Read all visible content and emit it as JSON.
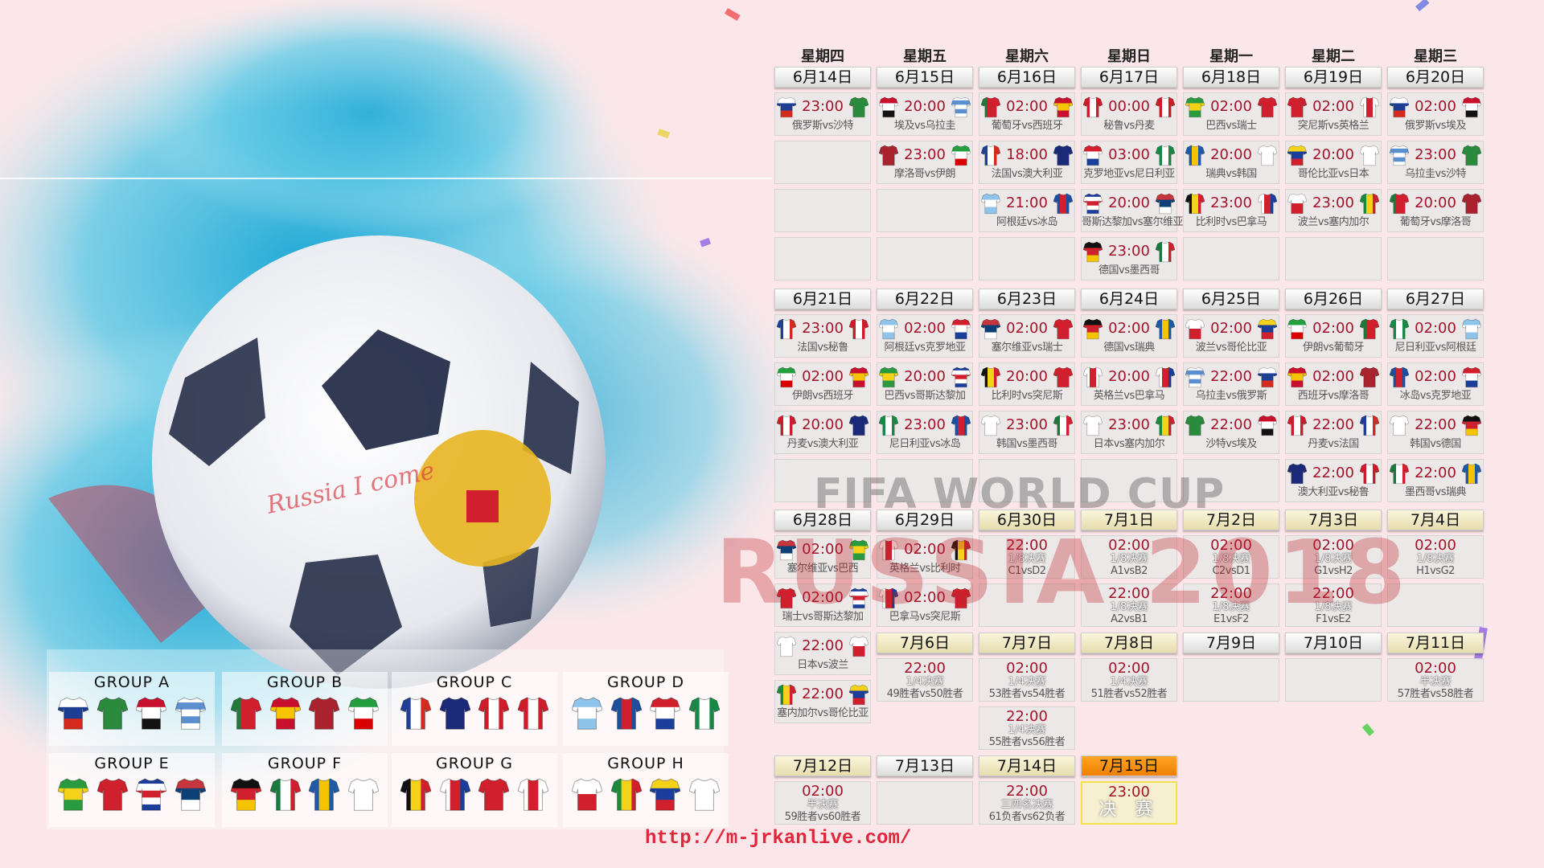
{
  "colors": {
    "background": "#fbe7e9",
    "time": "#a3142a",
    "final_header": "#f58a0a",
    "knockout_header": "#efe6bd",
    "url": "#e0263a"
  },
  "watermark": {
    "fifa": "FIFA WORLD CUP",
    "russia": "RUSSIA 2018",
    "ball": "Russia I come"
  },
  "url": "http://m-jrkanlive.com/",
  "weekdays": [
    "星期四",
    "星期五",
    "星期六",
    "星期日",
    "星期一",
    "星期二",
    "星期三"
  ],
  "teams": {
    "RUS": {
      "dir": "h",
      "colors": [
        "#ffffff",
        "#1c3f94",
        "#d52b1e"
      ]
    },
    "KSA": {
      "dir": "h",
      "colors": [
        "#2a8a3e"
      ]
    },
    "EGY": {
      "dir": "h",
      "colors": [
        "#c8102e",
        "#ffffff",
        "#111111"
      ]
    },
    "URU": {
      "dir": "h",
      "colors": [
        "#ffffff",
        "#5b8fd0",
        "#ffffff",
        "#5b8fd0",
        "#ffffff"
      ]
    },
    "POR": {
      "dir": "v",
      "colors": [
        "#1f7a3a",
        "#d0202e",
        "#d0202e"
      ]
    },
    "ESP": {
      "dir": "h",
      "colors": [
        "#c8102e",
        "#f6c400",
        "#c8102e"
      ]
    },
    "MAR": {
      "dir": "h",
      "colors": [
        "#a8232e"
      ]
    },
    "IRN": {
      "dir": "h",
      "colors": [
        "#239f40",
        "#ffffff",
        "#da0000"
      ]
    },
    "FRA": {
      "dir": "v",
      "colors": [
        "#1f3f99",
        "#ffffff",
        "#d52b1e"
      ]
    },
    "AUS": {
      "dir": "h",
      "colors": [
        "#1a2a78"
      ]
    },
    "PER": {
      "dir": "v",
      "colors": [
        "#d01c2a",
        "#ffffff",
        "#d01c2a"
      ]
    },
    "DEN": {
      "dir": "v",
      "colors": [
        "#d01c2a",
        "#ffffff",
        "#d01c2a"
      ]
    },
    "ARG": {
      "dir": "h",
      "colors": [
        "#8ec3ea",
        "#ffffff",
        "#8ec3ea"
      ]
    },
    "ISL": {
      "dir": "v",
      "colors": [
        "#1d4ea0",
        "#d0202e",
        "#1d4ea0"
      ]
    },
    "CRO": {
      "dir": "h",
      "colors": [
        "#d0202e",
        "#ffffff",
        "#1a3e99"
      ]
    },
    "NGA": {
      "dir": "v",
      "colors": [
        "#198a46",
        "#ffffff",
        "#198a46"
      ]
    },
    "BRA": {
      "dir": "h",
      "colors": [
        "#2a9a3e",
        "#f4d21a",
        "#2a9a3e"
      ]
    },
    "SUI": {
      "dir": "h",
      "colors": [
        "#d0202e"
      ]
    },
    "CRC": {
      "dir": "h",
      "colors": [
        "#1a3e99",
        "#ffffff",
        "#d0202e",
        "#ffffff",
        "#1a3e99"
      ]
    },
    "SRB": {
      "dir": "h",
      "colors": [
        "#c6363c",
        "#0c4077",
        "#ffffff"
      ]
    },
    "GER": {
      "dir": "h",
      "colors": [
        "#111111",
        "#d0202e",
        "#f4c400"
      ]
    },
    "MEX": {
      "dir": "v",
      "colors": [
        "#1a7a3e",
        "#ffffff",
        "#d0202e"
      ]
    },
    "SWE": {
      "dir": "v",
      "colors": [
        "#1e5aa8",
        "#f4c400",
        "#1e5aa8"
      ]
    },
    "KOR": {
      "dir": "h",
      "colors": [
        "#ffffff"
      ]
    },
    "BEL": {
      "dir": "v",
      "colors": [
        "#111111",
        "#f4d21a",
        "#d0202e"
      ]
    },
    "PAN": {
      "dir": "v",
      "colors": [
        "#ffffff",
        "#d0202e",
        "#1a3e99"
      ]
    },
    "TUN": {
      "dir": "h",
      "colors": [
        "#d0202e"
      ]
    },
    "ENG": {
      "dir": "v",
      "colors": [
        "#ffffff",
        "#d0202e",
        "#ffffff"
      ]
    },
    "POL": {
      "dir": "h",
      "colors": [
        "#ffffff",
        "#d0202e"
      ]
    },
    "SEN": {
      "dir": "v",
      "colors": [
        "#1a8a3e",
        "#f4d21a",
        "#d0202e"
      ]
    },
    "COL": {
      "dir": "h",
      "colors": [
        "#f4d21a",
        "#1a3e99",
        "#d0202e"
      ]
    },
    "JPN": {
      "dir": "h",
      "colors": [
        "#ffffff"
      ]
    }
  },
  "schedule": [
    {
      "days": [
        {
          "date": "6月14日",
          "header_style": "normal",
          "matches": [
            {
              "time": "23:00",
              "home": "RUS",
              "away": "KSA",
              "label": "俄罗斯vs沙特"
            }
          ]
        },
        {
          "date": "6月15日",
          "header_style": "normal",
          "matches": [
            {
              "time": "20:00",
              "home": "EGY",
              "away": "URU",
              "label": "埃及vs乌拉圭"
            },
            {
              "time": "23:00",
              "home": "MAR",
              "away": "IRN",
              "label": "摩洛哥vs伊朗"
            }
          ]
        },
        {
          "date": "6月16日",
          "header_style": "normal",
          "matches": [
            {
              "time": "02:00",
              "home": "POR",
              "away": "ESP",
              "label": "葡萄牙vs西班牙"
            },
            {
              "time": "18:00",
              "home": "FRA",
              "away": "AUS",
              "label": "法国vs澳大利亚"
            },
            {
              "time": "21:00",
              "home": "ARG",
              "away": "ISL",
              "label": "阿根廷vs冰岛"
            }
          ]
        },
        {
          "date": "6月17日",
          "header_style": "normal",
          "matches": [
            {
              "time": "00:00",
              "home": "PER",
              "away": "DEN",
              "label": "秘鲁vs丹麦"
            },
            {
              "time": "03:00",
              "home": "CRO",
              "away": "NGA",
              "label": "克罗地亚vs尼日利亚"
            },
            {
              "time": "20:00",
              "home": "CRC",
              "away": "SRB",
              "label": "哥斯达黎加vs塞尔维亚"
            },
            {
              "time": "23:00",
              "home": "GER",
              "away": "MEX",
              "label": "德国vs墨西哥"
            }
          ]
        },
        {
          "date": "6月18日",
          "header_style": "normal",
          "matches": [
            {
              "time": "02:00",
              "home": "BRA",
              "away": "SUI",
              "label": "巴西vs瑞士"
            },
            {
              "time": "20:00",
              "home": "SWE",
              "away": "KOR",
              "label": "瑞典vs韩国"
            },
            {
              "time": "23:00",
              "home": "BEL",
              "away": "PAN",
              "label": "比利时vs巴拿马"
            }
          ]
        },
        {
          "date": "6月19日",
          "header_style": "normal",
          "matches": [
            {
              "time": "02:00",
              "home": "TUN",
              "away": "ENG",
              "label": "突尼斯vs英格兰"
            },
            {
              "time": "20:00",
              "home": "COL",
              "away": "JPN",
              "label": "哥伦比亚vs日本"
            },
            {
              "time": "23:00",
              "home": "POL",
              "away": "SEN",
              "label": "波兰vs塞内加尔"
            }
          ]
        },
        {
          "date": "6月20日",
          "header_style": "normal",
          "matches": [
            {
              "time": "02:00",
              "home": "RUS",
              "away": "EGY",
              "label": "俄罗斯vs埃及"
            },
            {
              "time": "23:00",
              "home": "URU",
              "away": "KSA",
              "label": "乌拉圭vs沙特"
            },
            {
              "time": "20:00",
              "home": "POR",
              "away": "MAR",
              "label": "葡萄牙vs摩洛哥"
            }
          ]
        }
      ]
    },
    {
      "days": [
        {
          "date": "6月21日",
          "header_style": "normal",
          "matches": [
            {
              "time": "23:00",
              "home": "FRA",
              "away": "PER",
              "label": "法国vs秘鲁"
            },
            {
              "time": "02:00",
              "home": "IRN",
              "away": "ESP",
              "label": "伊朗vs西班牙"
            },
            {
              "time": "20:00",
              "home": "DEN",
              "away": "AUS",
              "label": "丹麦vs澳大利亚"
            }
          ]
        },
        {
          "date": "6月22日",
          "header_style": "normal",
          "matches": [
            {
              "time": "02:00",
              "home": "ARG",
              "away": "CRO",
              "label": "阿根廷vs克罗地亚"
            },
            {
              "time": "20:00",
              "home": "BRA",
              "away": "CRC",
              "label": "巴西vs哥斯达黎加"
            },
            {
              "time": "23:00",
              "home": "NGA",
              "away": "ISL",
              "label": "尼日利亚vs冰岛"
            }
          ]
        },
        {
          "date": "6月23日",
          "header_style": "normal",
          "matches": [
            {
              "time": "02:00",
              "home": "SRB",
              "away": "SUI",
              "label": "塞尔维亚vs瑞士"
            },
            {
              "time": "20:00",
              "home": "BEL",
              "away": "TUN",
              "label": "比利时vs突尼斯"
            },
            {
              "time": "23:00",
              "home": "KOR",
              "away": "MEX",
              "label": "韩国vs墨西哥"
            }
          ]
        },
        {
          "date": "6月24日",
          "header_style": "normal",
          "matches": [
            {
              "time": "02:00",
              "home": "GER",
              "away": "SWE",
              "label": "德国vs瑞典"
            },
            {
              "time": "20:00",
              "home": "ENG",
              "away": "PAN",
              "label": "英格兰vs巴拿马"
            },
            {
              "time": "23:00",
              "home": "JPN",
              "away": "SEN",
              "label": "日本vs塞内加尔"
            }
          ]
        },
        {
          "date": "6月25日",
          "header_style": "normal",
          "matches": [
            {
              "time": "02:00",
              "home": "POL",
              "away": "COL",
              "label": "波兰vs哥伦比亚"
            },
            {
              "time": "22:00",
              "home": "URU",
              "away": "RUS",
              "label": "乌拉圭vs俄罗斯"
            },
            {
              "time": "22:00",
              "home": "KSA",
              "away": "EGY",
              "label": "沙特vs埃及"
            }
          ]
        },
        {
          "date": "6月26日",
          "header_style": "normal",
          "matches": [
            {
              "time": "02:00",
              "home": "IRN",
              "away": "POR",
              "label": "伊朗vs葡萄牙"
            },
            {
              "time": "02:00",
              "home": "ESP",
              "away": "MAR",
              "label": "西班牙vs摩洛哥"
            },
            {
              "time": "22:00",
              "home": "DEN",
              "away": "FRA",
              "label": "丹麦vs法国"
            },
            {
              "time": "22:00",
              "home": "AUS",
              "away": "PER",
              "label": "澳大利亚vs秘鲁"
            }
          ]
        },
        {
          "date": "6月27日",
          "header_style": "normal",
          "matches": [
            {
              "time": "02:00",
              "home": "NGA",
              "away": "ARG",
              "label": "尼日利亚vs阿根廷"
            },
            {
              "time": "02:00",
              "home": "ISL",
              "away": "CRO",
              "label": "冰岛vs克罗地亚"
            },
            {
              "time": "22:00",
              "home": "KOR",
              "away": "GER",
              "label": "韩国vs德国"
            },
            {
              "time": "22:00",
              "home": "MEX",
              "away": "SWE",
              "label": "墨西哥vs瑞典"
            }
          ]
        }
      ]
    },
    {
      "days": [
        {
          "date": "6月28日",
          "header_style": "normal",
          "matches": [
            {
              "time": "02:00",
              "home": "SRB",
              "away": "BRA",
              "label": "塞尔维亚vs巴西"
            },
            {
              "time": "02:00",
              "home": "SUI",
              "away": "CRC",
              "label": "瑞士vs哥斯达黎加"
            },
            {
              "time": "22:00",
              "home": "JPN",
              "away": "POL",
              "label": "日本vs波兰"
            },
            {
              "time": "22:00",
              "home": "SEN",
              "away": "COL",
              "label": "塞内加尔vs哥伦比亚"
            }
          ]
        },
        {
          "date": "6月29日",
          "header_style": "normal",
          "matches": [
            {
              "time": "02:00",
              "home": "ENG",
              "away": "BEL",
              "label": "英格兰vs比利时"
            },
            {
              "time": "02:00",
              "home": "PAN",
              "away": "TUN",
              "label": "巴拿马vs突尼斯"
            }
          ]
        },
        {
          "date": "6月30日",
          "header_style": "knockout",
          "matches": [
            {
              "time": "22:00",
              "stage": "1/8决赛",
              "label": "C1vsD2"
            }
          ]
        },
        {
          "date": "7月1日",
          "header_style": "knockout",
          "matches": [
            {
              "time": "02:00",
              "stage": "1/8决赛",
              "label": "A1vsB2"
            },
            {
              "time": "22:00",
              "stage": "1/8决赛",
              "label": "A2vsB1"
            }
          ]
        },
        {
          "date": "7月2日",
          "header_style": "knockout",
          "matches": [
            {
              "time": "02:00",
              "stage": "1/8决赛",
              "label": "C2vsD1"
            },
            {
              "time": "22:00",
              "stage": "1/8决赛",
              "label": "E1vsF2"
            }
          ]
        },
        {
          "date": "7月3日",
          "header_style": "knockout",
          "matches": [
            {
              "time": "02:00",
              "stage": "1/8决赛",
              "label": "G1vsH2"
            },
            {
              "time": "22:00",
              "stage": "1/8决赛",
              "label": "F1vsE2"
            }
          ]
        },
        {
          "date": "7月4日",
          "header_style": "knockout",
          "matches": [
            {
              "time": "02:00",
              "stage": "1/8决赛",
              "label": "H1vsG2"
            }
          ]
        }
      ]
    },
    {
      "days": [
        {
          "date": "7月6日",
          "header_style": "knockout",
          "matches": [
            {
              "time": "22:00",
              "stage": "1/4决赛",
              "label": "49胜者vs50胜者"
            }
          ]
        },
        {
          "date": "7月7日",
          "header_style": "knockout",
          "matches": [
            {
              "time": "02:00",
              "stage": "1/4决赛",
              "label": "53胜者vs54胜者"
            },
            {
              "time": "22:00",
              "stage": "1/4决赛",
              "label": "55胜者vs56胜者"
            }
          ]
        },
        {
          "date": "7月8日",
          "header_style": "knockout",
          "matches": [
            {
              "time": "02:00",
              "stage": "1/4决赛",
              "label": "51胜者vs52胜者"
            }
          ]
        },
        {
          "date": "7月9日",
          "header_style": "normal",
          "matches": []
        },
        {
          "date": "7月10日",
          "header_style": "normal",
          "matches": []
        },
        {
          "date": "7月11日",
          "header_style": "knockout",
          "matches": [
            {
              "time": "02:00",
              "stage": "半决赛",
              "label": "57胜者vs58胜者"
            }
          ]
        }
      ]
    },
    {
      "days": [
        {
          "date": "7月12日",
          "header_style": "knockout",
          "matches": [
            {
              "time": "02:00",
              "stage": "半决赛",
              "label": "59胜者vs60胜者"
            }
          ]
        },
        {
          "date": "7月13日",
          "header_style": "normal",
          "matches": []
        },
        {
          "date": "7月14日",
          "header_style": "knockout",
          "matches": [
            {
              "time": "22:00",
              "stage": "三四名决赛",
              "label": "61负者vs62负者"
            }
          ]
        },
        {
          "date": "7月15日",
          "header_style": "final",
          "matches": [
            {
              "time": "23:00",
              "final": "决 赛"
            }
          ]
        }
      ]
    }
  ],
  "groups": [
    {
      "name": "GROUP A",
      "teams": [
        "RUS",
        "KSA",
        "EGY",
        "URU"
      ]
    },
    {
      "name": "GROUP B",
      "teams": [
        "POR",
        "ESP",
        "MAR",
        "IRN"
      ]
    },
    {
      "name": "GROUP C",
      "teams": [
        "FRA",
        "AUS",
        "PER",
        "DEN"
      ]
    },
    {
      "name": "GROUP D",
      "teams": [
        "ARG",
        "ISL",
        "CRO",
        "NGA"
      ]
    },
    {
      "name": "GROUP E",
      "teams": [
        "BRA",
        "SUI",
        "CRC",
        "SRB"
      ]
    },
    {
      "name": "GROUP F",
      "teams": [
        "GER",
        "MEX",
        "SWE",
        "KOR"
      ]
    },
    {
      "name": "GROUP G",
      "teams": [
        "BEL",
        "PAN",
        "TUN",
        "ENG"
      ]
    },
    {
      "name": "GROUP H",
      "teams": [
        "POL",
        "SEN",
        "COL",
        "JPN"
      ]
    }
  ]
}
